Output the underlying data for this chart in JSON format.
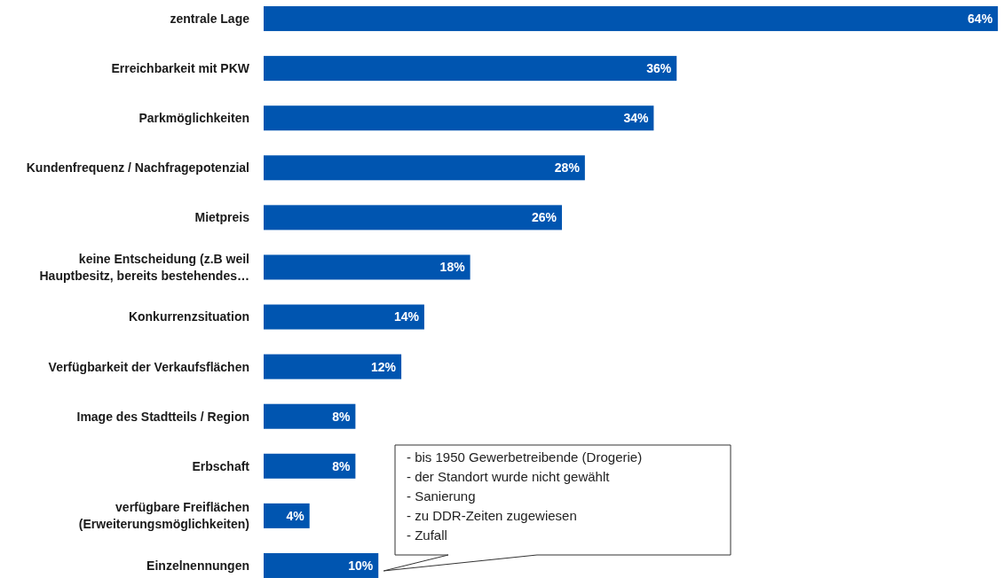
{
  "chart_data": {
    "type": "bar",
    "orientation": "horizontal",
    "categories": [
      "zentrale Lage",
      "Erreichbarkeit mit PKW",
      "Parkmöglichkeiten",
      "Kundenfrequenz / Nachfragepotenzial",
      "Mietpreis",
      "keine Entscheidung  (z.B weil Hauptbesitz, bereits bestehendes…",
      "Konkurrenzsituation",
      "Verfügbarkeit der Verkaufsflächen",
      "Image des Stadtteils / Region",
      "Erbschaft",
      "verfügbare Freiflächen (Erweiterungsmöglichkeiten)",
      "Einzelnennungen"
    ],
    "values": [
      64,
      36,
      34,
      28,
      26,
      18,
      14,
      12,
      8,
      8,
      4,
      10
    ],
    "value_labels": [
      "64%",
      "36%",
      "34%",
      "28%",
      "26%",
      "18%",
      "14%",
      "12%",
      "8%",
      "8%",
      "4%",
      "10%"
    ],
    "color": "#0055b0",
    "xlim": [
      0,
      64.3
    ],
    "tick_labels": "y",
    "annotations": [
      {
        "text": "- bis 1950 Gewerbetreibende (Drogerie)\n- der Standort wurde nicht gewählt\n- Sanierung\n- zu DDR-Zeiten zugewiesen\n- Zufall",
        "x": 10,
        "y": "Einzelnennungen"
      }
    ]
  }
}
